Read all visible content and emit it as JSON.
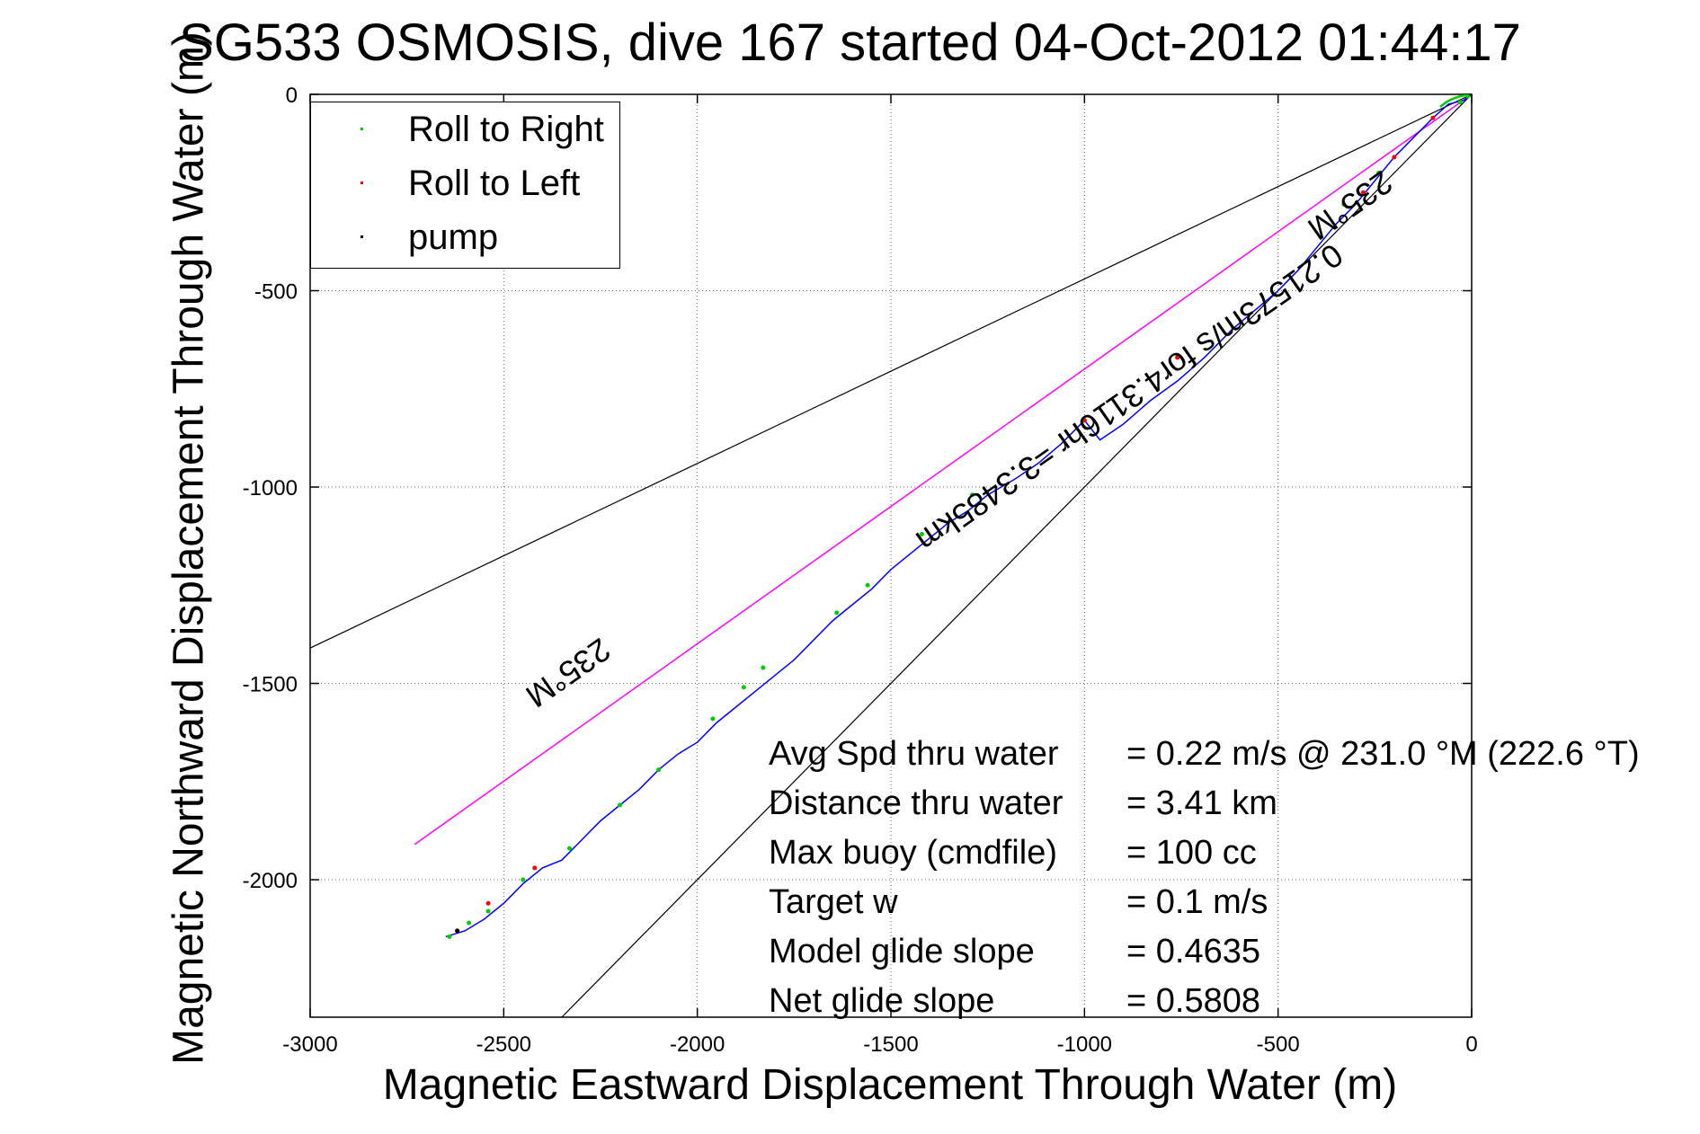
{
  "chart_data": {
    "type": "scatter",
    "title": "SG533 OSMOSIS, dive 167 started 04-Oct-2012 01:44:17",
    "xlabel": "Magnetic Eastward Displacement Through Water (m)",
    "ylabel": "Magnetic Northward Displacement Through Water (m)",
    "xlim": [
      -3000,
      0
    ],
    "ylim": [
      -2350,
      0
    ],
    "xticks": [
      -3000,
      -2500,
      -2000,
      -1500,
      -1000,
      -500,
      0
    ],
    "xtick_labels": [
      "-3000",
      "-2500",
      "-2000",
      "-1500",
      "-1000",
      "-500",
      "0"
    ],
    "yticks": [
      0,
      -500,
      -1000,
      -1500,
      -2000
    ],
    "ytick_labels": [
      "0",
      "-500",
      "-1000",
      "-1500",
      "-2000"
    ],
    "grid": true,
    "legend_position": "top-left",
    "legend": [
      {
        "label": "Roll to Right",
        "color": "#00cc00"
      },
      {
        "label": "Roll to Left",
        "color": "#ff0000"
      },
      {
        "label": "pump",
        "color": "#000000"
      }
    ],
    "track": {
      "color": "#0000ff",
      "x": [
        0,
        -20,
        -60,
        -100,
        -150,
        -200,
        -250,
        -300,
        -350,
        -400,
        -450,
        -500,
        -560,
        -620,
        -690,
        -760,
        -830,
        -900,
        -960,
        -1000,
        -1060,
        -1120,
        -1180,
        -1250,
        -1300,
        -1350,
        -1400,
        -1450,
        -1500,
        -1550,
        -1600,
        -1650,
        -1700,
        -1750,
        -1800,
        -1850,
        -1900,
        -1950,
        -2000,
        -2050,
        -2100,
        -2150,
        -2200,
        -2250,
        -2300,
        -2350,
        -2400,
        -2450,
        -2500,
        -2550,
        -2600,
        -2650
      ],
      "y": [
        0,
        -15,
        -25,
        -60,
        -110,
        -160,
        -220,
        -280,
        -330,
        -390,
        -450,
        -500,
        -550,
        -600,
        -670,
        -730,
        -780,
        -840,
        -880,
        -830,
        -890,
        -940,
        -980,
        -1020,
        -1060,
        -1090,
        -1130,
        -1170,
        -1210,
        -1260,
        -1300,
        -1340,
        -1390,
        -1440,
        -1480,
        -1520,
        -1560,
        -1600,
        -1650,
        -1680,
        -1720,
        -1770,
        -1810,
        -1850,
        -1900,
        -1950,
        -1970,
        -2010,
        -2060,
        -2100,
        -2130,
        -2145
      ]
    },
    "roll_right": {
      "x": [
        -10,
        -30,
        -240,
        -330,
        -760,
        -1000,
        -1290,
        -1420,
        -1560,
        -1640,
        -1830,
        -1880,
        -1960,
        -2100,
        -2200,
        -2330,
        -2450,
        -2540,
        -2590,
        -2640
      ],
      "y": [
        -5,
        -20,
        -200,
        -280,
        -670,
        -830,
        -1020,
        -1120,
        -1250,
        -1320,
        -1460,
        -1510,
        -1590,
        -1720,
        -1810,
        -1920,
        -2000,
        -2080,
        -2110,
        -2145
      ]
    },
    "roll_left": {
      "x": [
        -100,
        -200,
        -280,
        -760,
        -1000,
        -2420,
        -2540,
        -2620
      ],
      "y": [
        -60,
        -160,
        -250,
        -670,
        -830,
        -1970,
        -2060,
        -2130
      ]
    },
    "pump": {
      "x": [
        0,
        -2620
      ],
      "y": [
        0,
        -2130
      ]
    },
    "guide_lines": {
      "black_upper": {
        "x": [
          0,
          -3000
        ],
        "y": [
          0,
          -1410
        ]
      },
      "black_lower": {
        "x": [
          0,
          -2350
        ],
        "y": [
          0,
          -2350
        ]
      },
      "magenta": {
        "x": [
          0,
          -2730
        ],
        "y": [
          0,
          -1910
        ],
        "color": "#ff00ff"
      }
    },
    "annotations": [
      {
        "text": "235°M",
        "x": -2350,
        "y": -1450,
        "angle": 145
      },
      {
        "text": "235°M",
        "x": -330,
        "y": -260,
        "angle": 145
      },
      {
        "text": "0.21573m/s for4.3116hr =3.3485km",
        "x": -900,
        "y": -750,
        "angle": 145
      }
    ]
  },
  "stats": [
    {
      "label": "Avg Spd thru water",
      "value": "=  0.22 m/s @ 231.0 °M (222.6 °T)"
    },
    {
      "label": "Distance thru water",
      "value": "=  3.41 km"
    },
    {
      "label": "Max buoy (cmdfile)",
      "value": "= 100 cc"
    },
    {
      "label": "Target w",
      "value": "= 0.1 m/s"
    },
    {
      "label": "Model glide slope",
      "value": "= 0.4635"
    },
    {
      "label": "Net glide slope",
      "value": "= 0.5808"
    }
  ]
}
